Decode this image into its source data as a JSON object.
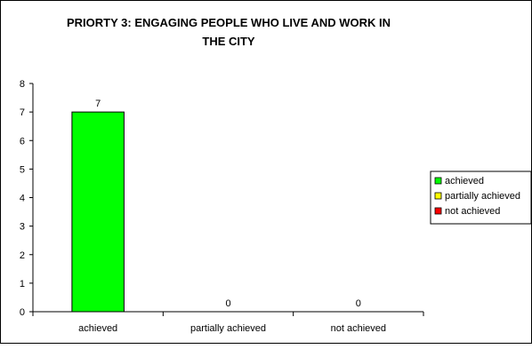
{
  "chart_data": {
    "type": "bar",
    "title_lines": [
      "PRIORTY 3: ENGAGING PEOPLE WHO LIVE AND WORK IN",
      "THE CITY"
    ],
    "categories": [
      "achieved",
      "partially achieved",
      "not achieved"
    ],
    "values": [
      7,
      0,
      0
    ],
    "colors": [
      "#00ff00",
      "#ffff00",
      "#ff0000"
    ],
    "ylim": [
      0,
      8
    ],
    "yticks": [
      0,
      1,
      2,
      3,
      4,
      5,
      6,
      7,
      8
    ],
    "legend": {
      "position": "right",
      "entries": [
        "achieved",
        "partially achieved",
        "not achieved"
      ]
    },
    "grid": false
  }
}
